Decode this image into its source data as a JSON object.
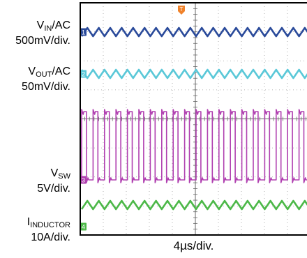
{
  "chart_data": {
    "type": "line",
    "title": "",
    "xlabel": "4µs/div.",
    "grid": true,
    "trigger_marker": "T",
    "channels": [
      {
        "id": "1",
        "name_main": "V",
        "name_sub": "IN",
        "name_suffix": "/AC",
        "scale": "500mV/div.",
        "color": "#2a4a9a",
        "waveform": "triangle"
      },
      {
        "id": "2",
        "name_main": "V",
        "name_sub": "OUT",
        "name_suffix": "/AC",
        "scale": "50mV/div.",
        "color": "#5ac8d8",
        "waveform": "triangle"
      },
      {
        "id": "3",
        "name_main": "V",
        "name_sub": "SW",
        "name_suffix": "",
        "scale": "5V/div.",
        "color": "#b040b0",
        "waveform": "square"
      },
      {
        "id": "4",
        "name_main": "I",
        "name_sub": "INDUCTOR",
        "name_suffix": "",
        "scale": "10A/div.",
        "color": "#4cb848",
        "waveform": "triangle"
      }
    ]
  }
}
